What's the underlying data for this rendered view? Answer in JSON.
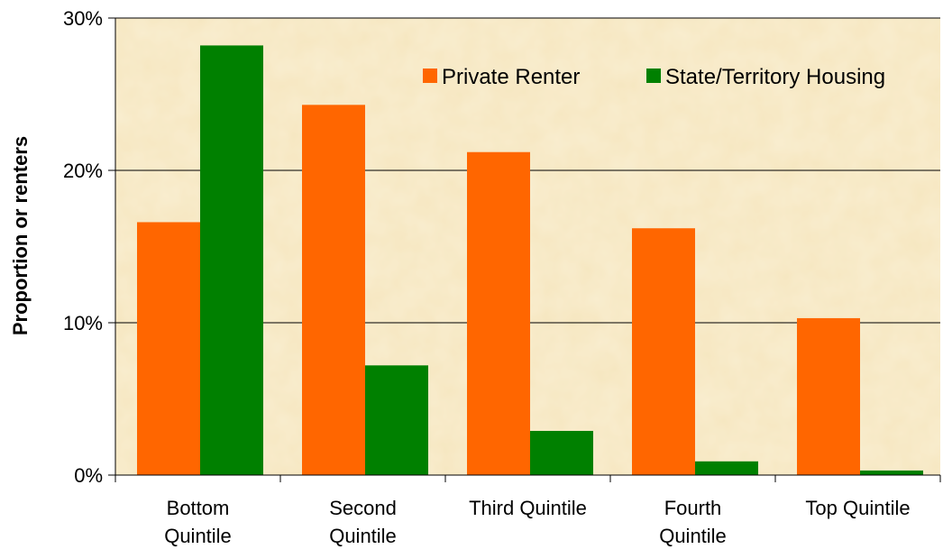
{
  "chart_data": {
    "type": "bar",
    "title": "",
    "xlabel": "",
    "ylabel": "Proportion or renters",
    "ylim": [
      0,
      30
    ],
    "yticks": [
      "0%",
      "10%",
      "20%",
      "30%"
    ],
    "grid": true,
    "legend_position": "top-right",
    "categories": [
      [
        "Bottom",
        "Quintile"
      ],
      [
        "Second",
        "Quintile"
      ],
      [
        "Third Quintile"
      ],
      [
        "Fourth",
        "Quintile"
      ],
      [
        "Top Quintile"
      ]
    ],
    "series": [
      {
        "name": "Private Renter",
        "color": "#ff6600",
        "values": [
          16.6,
          24.3,
          21.2,
          16.2,
          10.3
        ]
      },
      {
        "name": "State/Territory Housing",
        "color": "#008000",
        "values": [
          28.2,
          7.2,
          2.9,
          0.9,
          0.3
        ]
      }
    ]
  }
}
